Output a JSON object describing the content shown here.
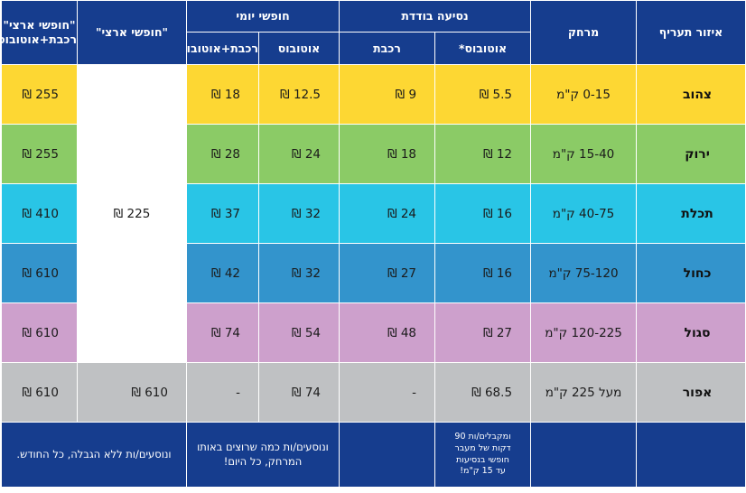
{
  "headers": {
    "zone": "איזור תעריף",
    "distance": "מרחק",
    "single_group": "נסיעה בודדת",
    "single_bus": "אוטובוס*",
    "single_train": "רכבת",
    "daily_group": "חופשי יומי",
    "daily_bus": "אוטובוס",
    "daily_train_bus": "רכבת+אוטובוס",
    "national": "\"חופשי ארצי\"",
    "national_train_bus_line1": "\"חופשי ארצי\"",
    "national_train_bus_line2": "רכבת+אוטובוס"
  },
  "rows": [
    {
      "zone": "צהוב",
      "distance": "0-15 ק\"מ",
      "single_bus": "5.5 ₪",
      "single_train": "9 ₪",
      "daily_bus": "12.5 ₪",
      "daily_train_bus": "18 ₪",
      "national_train_bus": "255 ₪",
      "color": "#fdd733"
    },
    {
      "zone": "ירוק",
      "distance": "15-40 ק\"מ",
      "single_bus": "12 ₪",
      "single_train": "18 ₪",
      "daily_bus": "24 ₪",
      "daily_train_bus": "28 ₪",
      "national_train_bus": "255 ₪",
      "color": "#8bcb66"
    },
    {
      "zone": "תכלת",
      "distance": "40-75 ק\"מ",
      "single_bus": "16 ₪",
      "single_train": "24 ₪",
      "daily_bus": "32 ₪",
      "daily_train_bus": "37 ₪",
      "national_train_bus": "410 ₪",
      "color": "#29c5e6"
    },
    {
      "zone": "כחול",
      "distance": "75-120 ק\"מ",
      "single_bus": "16 ₪",
      "single_train": "27 ₪",
      "daily_bus": "32 ₪",
      "daily_train_bus": "42 ₪",
      "national_train_bus": "610 ₪",
      "color": "#3394cc"
    },
    {
      "zone": "סגול",
      "distance": "120-225 ק\"מ",
      "single_bus": "27 ₪",
      "single_train": "48 ₪",
      "daily_bus": "54 ₪",
      "daily_train_bus": "74 ₪",
      "national_train_bus": "610 ₪",
      "color": "#cda0cc"
    },
    {
      "zone": "אפור",
      "distance": "מעל 225 ק\"מ",
      "single_bus": "68.5 ₪",
      "single_train": "-",
      "daily_bus": "74 ₪",
      "daily_train_bus": "-",
      "national": "610 ₪",
      "national_train_bus": "610 ₪",
      "color": "#bfc1c3"
    }
  ],
  "national_shared": "225 ₪",
  "footer": {
    "single_bus_note_1": "ומקבלים/ות 90",
    "single_bus_note_2": "דקות של מעבר",
    "single_bus_note_3": "חופשי בנסיעות",
    "single_bus_note_4": "עד 15 ק\"מ!",
    "daily_note_1": "ונוסעים/ות כמה שרוצים באותו",
    "daily_note_2": "המרחק, כל היום!",
    "national_note": "ונוסעים/ות ללא הגבלה, כל החודש."
  },
  "colors": {
    "header": "#163d8e",
    "white": "#ffffff"
  }
}
